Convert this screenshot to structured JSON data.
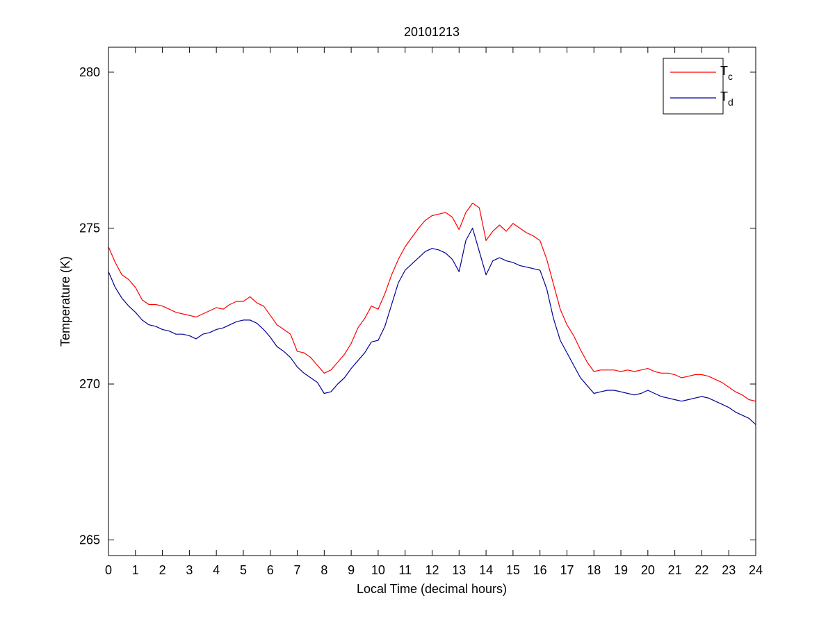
{
  "chart_data": {
    "type": "line",
    "title": "20101213",
    "xlabel": "Local Time (decimal hours)",
    "ylabel": "Temperature (K)",
    "xlim": [
      0,
      24
    ],
    "ylim": [
      264.5,
      280.8
    ],
    "xticks": [
      0,
      1,
      2,
      3,
      4,
      5,
      6,
      7,
      8,
      9,
      10,
      11,
      12,
      13,
      14,
      15,
      16,
      17,
      18,
      19,
      20,
      21,
      22,
      23,
      24
    ],
    "yticks": [
      265,
      270,
      275,
      280
    ],
    "grid": false,
    "legend_position": "top-right",
    "series": [
      {
        "name": "T",
        "subscript": "c",
        "color": "#ff0000",
        "x": [
          0,
          0.25,
          0.5,
          0.75,
          1,
          1.25,
          1.5,
          1.75,
          2,
          2.25,
          2.5,
          2.75,
          3,
          3.25,
          3.5,
          3.75,
          4,
          4.25,
          4.5,
          4.75,
          5,
          5.25,
          5.5,
          5.75,
          6,
          6.25,
          6.5,
          6.75,
          7,
          7.25,
          7.5,
          7.75,
          8,
          8.25,
          8.5,
          8.75,
          9,
          9.25,
          9.5,
          9.75,
          10,
          10.25,
          10.5,
          10.75,
          11,
          11.25,
          11.5,
          11.75,
          12,
          12.25,
          12.5,
          12.75,
          13,
          13.25,
          13.5,
          13.75,
          14,
          14.25,
          14.5,
          14.75,
          15,
          15.25,
          15.5,
          15.75,
          16,
          16.25,
          16.5,
          16.75,
          17,
          17.25,
          17.5,
          17.75,
          18,
          18.25,
          18.5,
          18.75,
          19,
          19.25,
          19.5,
          19.75,
          20,
          20.25,
          20.5,
          20.75,
          21,
          21.25,
          21.5,
          21.75,
          22,
          22.25,
          22.5,
          22.75,
          23,
          23.25,
          23.5,
          23.75,
          24
        ],
        "y": [
          274.4,
          273.9,
          273.5,
          273.35,
          273.1,
          272.7,
          272.55,
          272.55,
          272.5,
          272.4,
          272.3,
          272.25,
          272.2,
          272.15,
          272.25,
          272.35,
          272.45,
          272.4,
          272.55,
          272.65,
          272.65,
          272.8,
          272.6,
          272.5,
          272.2,
          271.9,
          271.75,
          271.6,
          271.05,
          271,
          270.85,
          270.6,
          270.35,
          270.45,
          270.7,
          270.95,
          271.3,
          271.8,
          272.1,
          272.5,
          272.4,
          272.9,
          273.5,
          274,
          274.4,
          274.7,
          275,
          275.25,
          275.4,
          275.45,
          275.5,
          275.35,
          274.95,
          275.5,
          275.8,
          275.65,
          274.6,
          274.9,
          275.1,
          274.9,
          275.15,
          275,
          274.85,
          274.75,
          274.6,
          274,
          273.2,
          272.4,
          271.9,
          271.55,
          271.1,
          270.7,
          270.4,
          270.45,
          270.45,
          270.45,
          270.4,
          270.45,
          270.4,
          270.45,
          270.5,
          270.4,
          270.35,
          270.35,
          270.3,
          270.2,
          270.25,
          270.3,
          270.3,
          270.25,
          270.15,
          270.05,
          269.9,
          269.75,
          269.65,
          269.5,
          269.45
        ]
      },
      {
        "name": "T",
        "subscript": "d",
        "color": "#000099",
        "x": [
          0,
          0.25,
          0.5,
          0.75,
          1,
          1.25,
          1.5,
          1.75,
          2,
          2.25,
          2.5,
          2.75,
          3,
          3.25,
          3.5,
          3.75,
          4,
          4.25,
          4.5,
          4.75,
          5,
          5.25,
          5.5,
          5.75,
          6,
          6.25,
          6.5,
          6.75,
          7,
          7.25,
          7.5,
          7.75,
          8,
          8.25,
          8.5,
          8.75,
          9,
          9.25,
          9.5,
          9.75,
          10,
          10.25,
          10.5,
          10.75,
          11,
          11.25,
          11.5,
          11.75,
          12,
          12.25,
          12.5,
          12.75,
          13,
          13.25,
          13.5,
          13.75,
          14,
          14.25,
          14.5,
          14.75,
          15,
          15.25,
          15.5,
          15.75,
          16,
          16.25,
          16.5,
          16.75,
          17,
          17.25,
          17.5,
          17.75,
          18,
          18.25,
          18.5,
          18.75,
          19,
          19.25,
          19.5,
          19.75,
          20,
          20.25,
          20.5,
          20.75,
          21,
          21.25,
          21.5,
          21.75,
          22,
          22.25,
          22.5,
          22.75,
          23,
          23.25,
          23.5,
          23.75,
          24
        ],
        "y": [
          273.6,
          273.1,
          272.75,
          272.5,
          272.3,
          272.05,
          271.9,
          271.85,
          271.75,
          271.7,
          271.6,
          271.6,
          271.55,
          271.45,
          271.6,
          271.65,
          271.75,
          271.8,
          271.9,
          272,
          272.05,
          272.05,
          271.95,
          271.75,
          271.5,
          271.2,
          271.05,
          270.85,
          270.55,
          270.35,
          270.2,
          270.05,
          269.7,
          269.75,
          270,
          270.2,
          270.5,
          270.75,
          271,
          271.35,
          271.4,
          271.85,
          272.55,
          273.25,
          273.65,
          273.85,
          274.05,
          274.25,
          274.35,
          274.3,
          274.2,
          274,
          273.6,
          274.6,
          275,
          274.25,
          273.5,
          273.95,
          274.05,
          273.95,
          273.9,
          273.8,
          273.75,
          273.7,
          273.65,
          273.05,
          272.1,
          271.4,
          271,
          270.6,
          270.2,
          269.95,
          269.7,
          269.75,
          269.8,
          269.8,
          269.75,
          269.7,
          269.65,
          269.7,
          269.8,
          269.7,
          269.6,
          269.55,
          269.5,
          269.45,
          269.5,
          269.55,
          269.6,
          269.55,
          269.45,
          269.35,
          269.25,
          269.1,
          269,
          268.9,
          268.7
        ]
      }
    ]
  }
}
